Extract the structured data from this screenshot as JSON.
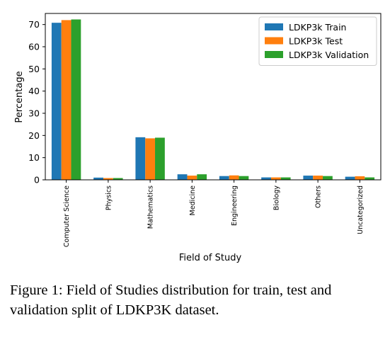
{
  "chart_data": {
    "type": "bar",
    "title": "",
    "xlabel": "Field of Study",
    "ylabel": "Percentage",
    "ylim": [
      0,
      75
    ],
    "yticks": [
      0,
      10,
      20,
      30,
      40,
      50,
      60,
      70
    ],
    "grid": false,
    "legend_position": "top-right",
    "categories": [
      "Computer Science",
      "Physics",
      "Mathematics",
      "Medicine",
      "Engineering",
      "Biology",
      "Others",
      "Uncategorized"
    ],
    "series": [
      {
        "name": "LDKP3k Train",
        "color": "#1f77b4",
        "values": [
          70.8,
          1.0,
          19.2,
          2.5,
          1.7,
          1.1,
          1.9,
          1.4
        ]
      },
      {
        "name": "LDKP3k Test",
        "color": "#ff7f0e",
        "values": [
          72.0,
          0.8,
          18.7,
          1.9,
          2.0,
          1.1,
          1.9,
          1.6
        ]
      },
      {
        "name": "LDKP3k Validation",
        "color": "#2ca02c",
        "values": [
          72.3,
          0.8,
          19.0,
          2.5,
          1.7,
          1.1,
          1.7,
          1.1
        ]
      }
    ]
  },
  "caption": {
    "label": "Figure 1:",
    "text": "Field of Studies distribution for train, test and validation split of LDKP3K dataset."
  }
}
